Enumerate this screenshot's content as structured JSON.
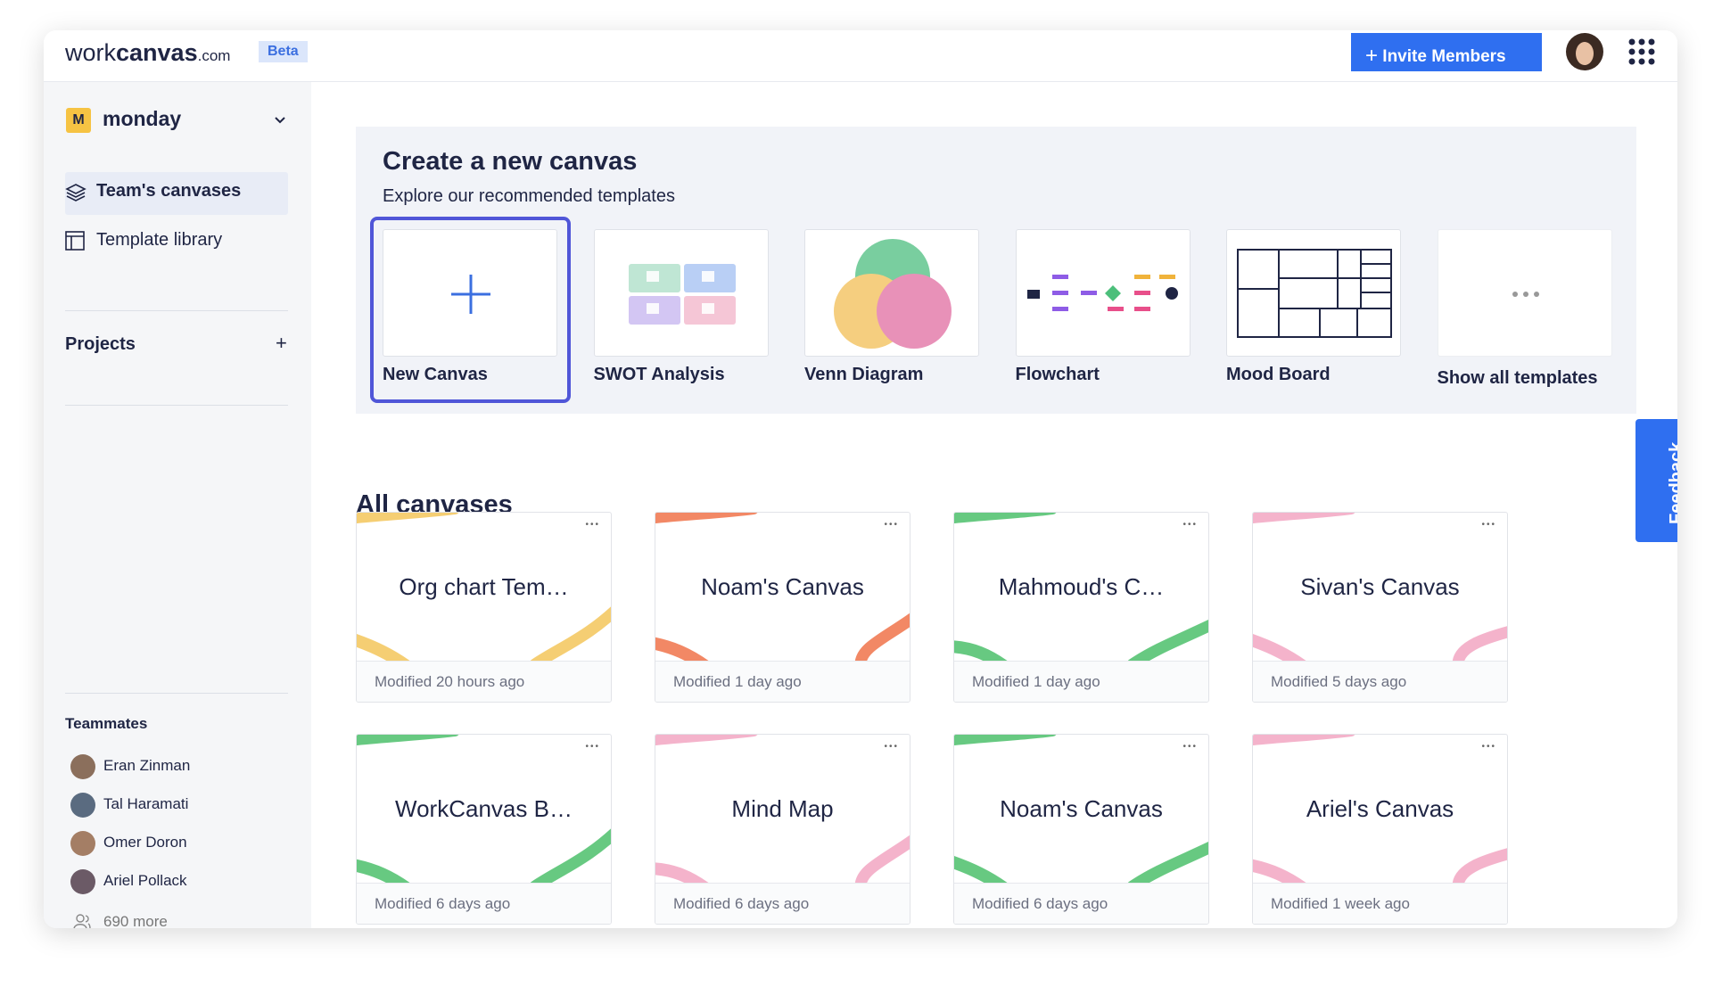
{
  "header": {
    "logo_light": "work",
    "logo_bold": "canvas",
    "logo_suffix": ".com",
    "badge": "Beta",
    "invite": "Invite Members"
  },
  "sidebar": {
    "workspace_initial": "M",
    "workspace": "monday",
    "nav": [
      "Team's canvases",
      "Template library"
    ],
    "projects": "Projects",
    "teammates_title": "Teammates",
    "teammates": [
      "Eran Zinman",
      "Tal Haramati",
      "Omer Doron",
      "Ariel Pollack"
    ],
    "more": "690 more"
  },
  "create": {
    "title": "Create a new canvas",
    "subtitle": "Explore our recommended templates",
    "templates": [
      "New Canvas",
      "SWOT Analysis",
      "Venn Diagram",
      "Flowchart",
      "Mood Board",
      "Show all templates"
    ]
  },
  "all": {
    "title": "All canvases",
    "canvases": [
      {
        "name": "Org chart Tem…",
        "modified": "Modified 20 hours ago"
      },
      {
        "name": "Noam's Canvas",
        "modified": "Modified 1 day ago"
      },
      {
        "name": "Mahmoud's C…",
        "modified": "Modified 1 day ago"
      },
      {
        "name": "Sivan's Canvas",
        "modified": "Modified 5 days ago"
      },
      {
        "name": "WorkCanvas B…",
        "modified": "Modified 6 days ago"
      },
      {
        "name": "Mind Map",
        "modified": "Modified 6 days ago"
      },
      {
        "name": "Noam's Canvas",
        "modified": "Modified 6 days ago"
      },
      {
        "name": "Ariel's Canvas",
        "modified": "Modified 1 week ago"
      }
    ]
  },
  "feedback": "Feedback"
}
